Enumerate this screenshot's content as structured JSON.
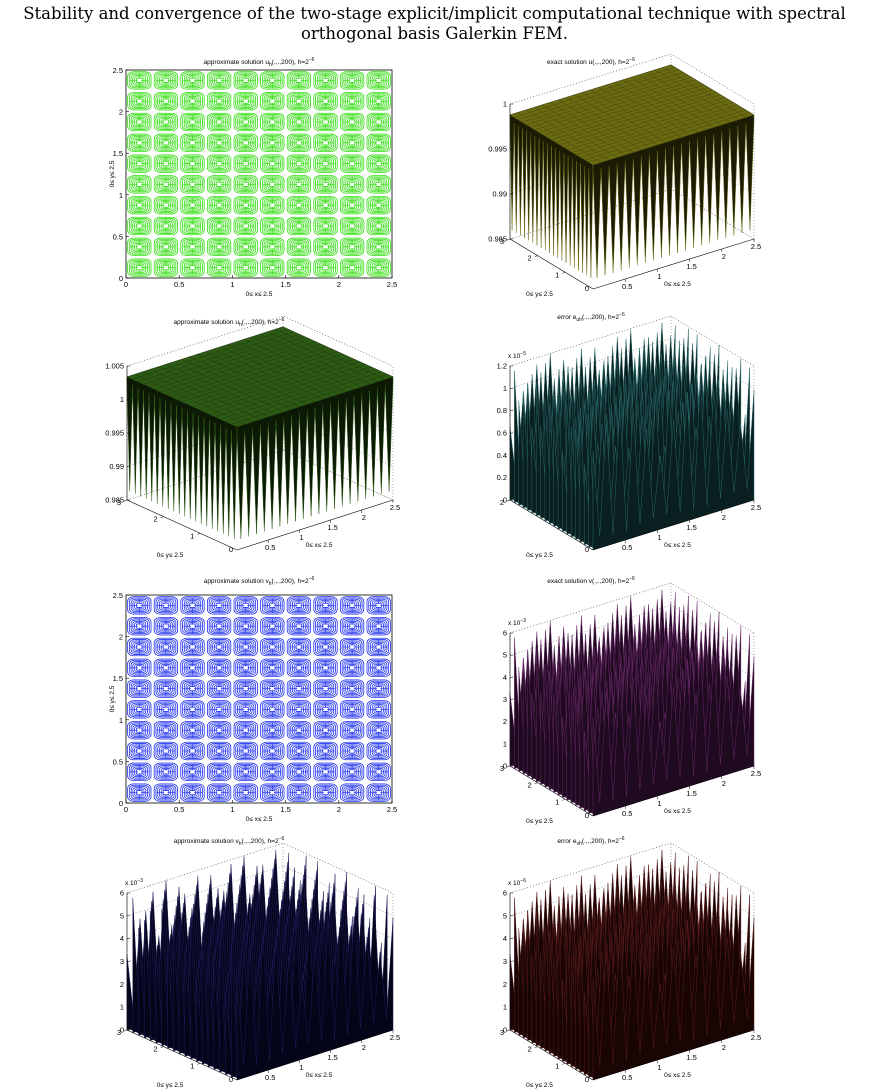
{
  "page": {
    "title_line1": "Stability and convergence of the two-stage explicit/implicit computational technique with spectral",
    "title_line2": "orthogonal basis Galerkin FEM."
  },
  "chart_data": [
    {
      "id": "p1",
      "type": "heatmap",
      "style": "contour",
      "title": {
        "pre": "approximate solution u",
        "sub": "h",
        "post": "(.,.,200), h=2",
        "sup": "−6"
      },
      "xlabel": "0≤ x≤ 2.5",
      "ylabel": "0≤ y≤ 2.5",
      "xlim": [
        0,
        2.5
      ],
      "ylim": [
        0,
        2.5
      ],
      "xticks": [
        "0",
        "0.5",
        "1",
        "1.5",
        "2",
        "2.5"
      ],
      "yticks": [
        "0",
        "0.5",
        "1",
        "1.5",
        "2",
        "2.5"
      ],
      "cells": [
        10,
        10
      ],
      "color": "#33dd11"
    },
    {
      "id": "p2",
      "type": "surface",
      "title": {
        "pre": "exact solution u(.,.,200), h=2",
        "sub": "",
        "post": "",
        "sup": "−6"
      },
      "xlabel": "0≤ x≤ 2.5",
      "ylabel": "0≤ y≤ 2.5",
      "zlim": [
        0.985,
        1
      ],
      "zticks": [
        "0.985",
        "0.99",
        "0.995",
        "1"
      ],
      "xticks": [
        "0.5",
        "1",
        "1.5",
        "2",
        "2.5"
      ],
      "yticks": [
        "0",
        "1",
        "2",
        "3"
      ],
      "zscale": "",
      "shape": "plateau",
      "color": "#6b6b12",
      "dark": "#1c1c05"
    },
    {
      "id": "p3",
      "type": "surface",
      "title": {
        "pre": "approximate solution u",
        "sub": "h",
        "post": "(.,.,200), h=2",
        "sup": "−6"
      },
      "xlabel": "0≤ x≤ 2.5",
      "ylabel": "0≤ y≤ 2.5",
      "zlim": [
        0.985,
        1.005
      ],
      "zticks": [
        "0.985",
        "0.99",
        "0.995",
        "1",
        "1.005"
      ],
      "xticks": [
        "0.5",
        "1",
        "1.5",
        "2",
        "2.5"
      ],
      "yticks": [
        "0",
        "1",
        "2",
        "3"
      ],
      "zscale": "",
      "shape": "plateau",
      "color": "#2d5a14",
      "dark": "#0c1a05"
    },
    {
      "id": "p4",
      "type": "surface",
      "title": {
        "pre": "error e",
        "sub": "uh",
        "post": "(.,.,200), h=2",
        "sup": "−6"
      },
      "xlabel": "0≤ x≤ 2.5",
      "ylabel": "0≤ y≤ 2.5",
      "zlim": [
        0,
        1.2
      ],
      "zticks": [
        "0",
        "0.2",
        "0.4",
        "0.6",
        "0.8",
        "1",
        "1.2"
      ],
      "xticks": [
        "0.5",
        "1",
        "1.5",
        "2",
        "2.5"
      ],
      "yticks": [
        "0",
        "2"
      ],
      "zscale": {
        "pre": "x 10",
        "sup": "−5"
      },
      "shape": "spikes",
      "color": "#2a6b6b",
      "dark": "#0a1f20"
    },
    {
      "id": "p5",
      "type": "heatmap",
      "style": "contour",
      "title": {
        "pre": "approximate solution v",
        "sub": "h",
        "post": "(.,.,200), h=2",
        "sup": "−6"
      },
      "xlabel": "0≤ x≤ 2.5",
      "ylabel": "0≤ y≤ 2.5",
      "xlim": [
        0,
        2.5
      ],
      "ylim": [
        0,
        2.5
      ],
      "xticks": [
        "0",
        "0.5",
        "1",
        "1.5",
        "2",
        "2.5"
      ],
      "yticks": [
        "0",
        "0.5",
        "1",
        "1.5",
        "2",
        "2.5"
      ],
      "cells": [
        10,
        10
      ],
      "color": "#2233ee"
    },
    {
      "id": "p6",
      "type": "surface",
      "title": {
        "pre": "exact solution v(.,.,200), h=2",
        "sub": "",
        "post": "",
        "sup": "−6"
      },
      "xlabel": "0≤ x≤ 2.5",
      "ylabel": "0≤ y≤ 2.5",
      "zlim": [
        0,
        6
      ],
      "zticks": [
        "0",
        "1",
        "2",
        "3",
        "4",
        "5",
        "6"
      ],
      "xticks": [
        "0.5",
        "1",
        "1.5",
        "2",
        "2.5"
      ],
      "yticks": [
        "0",
        "1",
        "2",
        "3"
      ],
      "zscale": {
        "pre": "x 10",
        "sup": "−3"
      },
      "shape": "spikes",
      "color": "#6b2a6b",
      "dark": "#1f0a20"
    },
    {
      "id": "p7",
      "type": "surface",
      "title": {
        "pre": "approximate solution v",
        "sub": "h",
        "post": "(.,.,200), h=2",
        "sup": "−6"
      },
      "xlabel": "0≤ x≤ 2.5",
      "ylabel": "0≤ y≤ 2.5",
      "zlim": [
        0,
        6
      ],
      "zticks": [
        "0",
        "1",
        "2",
        "3",
        "4",
        "5",
        "6"
      ],
      "xticks": [
        "0.5",
        "1",
        "1.5",
        "2",
        "2.5"
      ],
      "yticks": [
        "0",
        "1",
        "2",
        "3"
      ],
      "zscale": {
        "pre": "x 10",
        "sup": "−3"
      },
      "shape": "spikes",
      "color": "#1e1e5e",
      "dark": "#05051a"
    },
    {
      "id": "p8",
      "type": "surface",
      "title": {
        "pre": "error e",
        "sub": "vh",
        "post": "(.,.,200), h=2",
        "sup": "−6"
      },
      "xlabel": "0≤ x≤ 2.5",
      "ylabel": "0≤ y≤ 2.5",
      "zlim": [
        0,
        6
      ],
      "zticks": [
        "0",
        "1",
        "2",
        "3",
        "4",
        "5",
        "6"
      ],
      "xticks": [
        "0.5",
        "1",
        "1.5",
        "2",
        "2.5"
      ],
      "yticks": [
        "0",
        "1",
        "2",
        "3"
      ],
      "zscale": {
        "pre": "x 10",
        "sup": "−6"
      },
      "shape": "spikes",
      "color": "#5e1e1e",
      "dark": "#1a0505"
    }
  ]
}
